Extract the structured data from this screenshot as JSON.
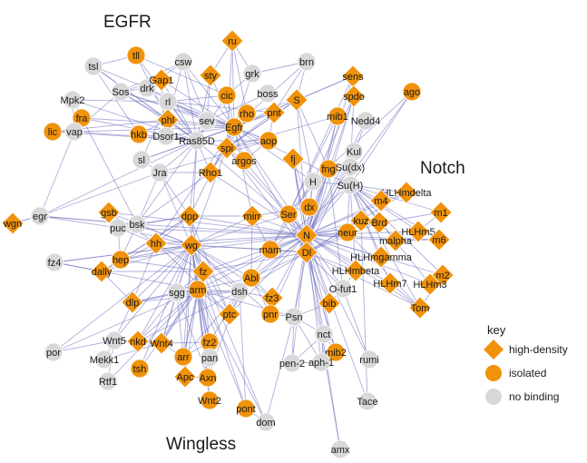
{
  "regions": {
    "egfr": "EGFR",
    "notch": "Notch",
    "wingless": "Wingless"
  },
  "legend": {
    "title": "key",
    "items": [
      {
        "shape": "diamond",
        "label": "high-density"
      },
      {
        "shape": "circle",
        "label": "isolated"
      },
      {
        "shape": "grey-circle",
        "label": "no binding"
      }
    ]
  },
  "colors": {
    "high_density": "#f0920a",
    "isolated": "#f0920a",
    "no_binding": "#d8d8d8",
    "edge": "#6b6bbd",
    "node_stroke": "#ffffff"
  },
  "nodes": [
    {
      "id": "ru",
      "type": "diamond"
    },
    {
      "id": "tll",
      "type": "circle"
    },
    {
      "id": "csw",
      "type": "grey"
    },
    {
      "id": "brn",
      "type": "grey"
    },
    {
      "id": "tsl",
      "type": "grey"
    },
    {
      "id": "drk",
      "type": "grey"
    },
    {
      "id": "Gap1",
      "type": "diamond"
    },
    {
      "id": "sty",
      "type": "diamond"
    },
    {
      "id": "grk",
      "type": "grey"
    },
    {
      "id": "sens",
      "type": "diamond"
    },
    {
      "id": "Mpk2",
      "type": "grey"
    },
    {
      "id": "Sos",
      "type": "grey"
    },
    {
      "id": "rl",
      "type": "grey"
    },
    {
      "id": "cic",
      "type": "circle"
    },
    {
      "id": "boss",
      "type": "grey"
    },
    {
      "id": "spdo",
      "type": "diamond"
    },
    {
      "id": "ago",
      "type": "circle"
    },
    {
      "id": "S",
      "type": "diamond"
    },
    {
      "id": "fra",
      "type": "circle"
    },
    {
      "id": "phl",
      "type": "diamond"
    },
    {
      "id": "rho",
      "type": "circle"
    },
    {
      "id": "pnt",
      "type": "diamond"
    },
    {
      "id": "mib1",
      "type": "circle"
    },
    {
      "id": "Nedd4",
      "type": "grey"
    },
    {
      "id": "lic",
      "type": "circle"
    },
    {
      "id": "vap",
      "type": "grey"
    },
    {
      "id": "hkb",
      "type": "circle"
    },
    {
      "id": "Dsor1",
      "type": "grey"
    },
    {
      "id": "sev",
      "type": "grey"
    },
    {
      "id": "Egfr",
      "type": "circle"
    },
    {
      "id": "Ras85D",
      "type": "grey"
    },
    {
      "id": "aop",
      "type": "circle"
    },
    {
      "id": "spi",
      "type": "diamond"
    },
    {
      "id": "Kul",
      "type": "grey"
    },
    {
      "id": "sl",
      "type": "grey"
    },
    {
      "id": "argos",
      "type": "circle"
    },
    {
      "id": "fj",
      "type": "diamond"
    },
    {
      "id": "fng",
      "type": "circle"
    },
    {
      "id": "Su(dx)",
      "type": "grey"
    },
    {
      "id": "Jra",
      "type": "grey"
    },
    {
      "id": "Rho1",
      "type": "diamond"
    },
    {
      "id": "H",
      "type": "grey"
    },
    {
      "id": "Su(H)",
      "type": "grey"
    },
    {
      "id": "HLHmdelta",
      "type": "diamond"
    },
    {
      "id": "wgn",
      "type": "diamond"
    },
    {
      "id": "egr",
      "type": "grey"
    },
    {
      "id": "gsb",
      "type": "diamond"
    },
    {
      "id": "dpp",
      "type": "diamond"
    },
    {
      "id": "mirr",
      "type": "diamond"
    },
    {
      "id": "dx",
      "type": "circle"
    },
    {
      "id": "Ser",
      "type": "circle"
    },
    {
      "id": "m4",
      "type": "diamond"
    },
    {
      "id": "m1",
      "type": "diamond"
    },
    {
      "id": "bsk",
      "type": "grey"
    },
    {
      "id": "puc",
      "type": "grey"
    },
    {
      "id": "kuz",
      "type": "diamond"
    },
    {
      "id": "Brd",
      "type": "diamond"
    },
    {
      "id": "neur",
      "type": "circle"
    },
    {
      "id": "HLHm5",
      "type": "diamond"
    },
    {
      "id": "N",
      "type": "diamond"
    },
    {
      "id": "malpha",
      "type": "diamond"
    },
    {
      "id": "m6",
      "type": "diamond"
    },
    {
      "id": "hh",
      "type": "diamond"
    },
    {
      "id": "wg",
      "type": "diamond"
    },
    {
      "id": "mam",
      "type": "circle"
    },
    {
      "id": "Dl",
      "type": "diamond"
    },
    {
      "id": "HLHmgamma",
      "type": "diamond"
    },
    {
      "id": "fz4",
      "type": "grey"
    },
    {
      "id": "hep",
      "type": "circle"
    },
    {
      "id": "dally",
      "type": "diamond"
    },
    {
      "id": "fz",
      "type": "diamond"
    },
    {
      "id": "Abl",
      "type": "circle"
    },
    {
      "id": "HLHmbeta",
      "type": "diamond"
    },
    {
      "id": "m2",
      "type": "diamond"
    },
    {
      "id": "HLHm7",
      "type": "diamond"
    },
    {
      "id": "HLHm3",
      "type": "diamond"
    },
    {
      "id": "arm",
      "type": "circle"
    },
    {
      "id": "sgg",
      "type": "grey"
    },
    {
      "id": "dsh",
      "type": "grey"
    },
    {
      "id": "O-fut1",
      "type": "grey"
    },
    {
      "id": "fz3",
      "type": "diamond"
    },
    {
      "id": "Tom",
      "type": "diamond"
    },
    {
      "id": "dlp",
      "type": "diamond"
    },
    {
      "id": "bib",
      "type": "diamond"
    },
    {
      "id": "pnr",
      "type": "circle"
    },
    {
      "id": "ptc",
      "type": "diamond"
    },
    {
      "id": "Psn",
      "type": "grey"
    },
    {
      "id": "nct",
      "type": "grey"
    },
    {
      "id": "Wnt5",
      "type": "grey"
    },
    {
      "id": "nkd",
      "type": "diamond"
    },
    {
      "id": "Wnt4",
      "type": "diamond"
    },
    {
      "id": "fz2",
      "type": "circle"
    },
    {
      "id": "por",
      "type": "grey"
    },
    {
      "id": "arr",
      "type": "circle"
    },
    {
      "id": "mib2",
      "type": "circle"
    },
    {
      "id": "Mekk1",
      "type": "grey"
    },
    {
      "id": "pan",
      "type": "grey"
    },
    {
      "id": "pen-2",
      "type": "grey"
    },
    {
      "id": "aph-1",
      "type": "grey"
    },
    {
      "id": "rumi",
      "type": "grey"
    },
    {
      "id": "Rtf1",
      "type": "grey"
    },
    {
      "id": "tsh",
      "type": "circle"
    },
    {
      "id": "Apc",
      "type": "diamond"
    },
    {
      "id": "Axn",
      "type": "circle"
    },
    {
      "id": "Wnt2",
      "type": "circle"
    },
    {
      "id": "Tace",
      "type": "grey"
    },
    {
      "id": "pont",
      "type": "circle"
    },
    {
      "id": "dom",
      "type": "grey"
    },
    {
      "id": "amx",
      "type": "grey"
    }
  ]
}
